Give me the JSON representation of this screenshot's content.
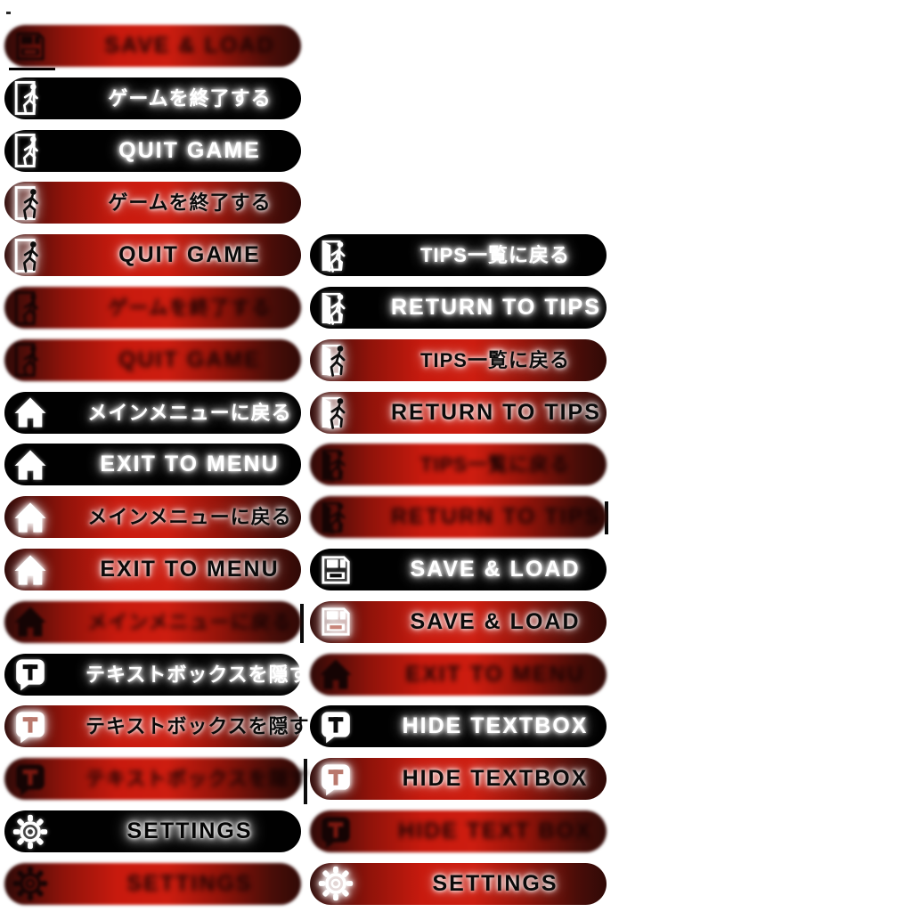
{
  "palette": {
    "red_bright": "#cc1b0f",
    "red_dark": "#2f0a08",
    "black": "#010101",
    "white": "#ffffff",
    "glow": "#ffffff"
  },
  "icon_legend": {
    "floppy-icon": "save / load (floppy disk)",
    "exit-door-icon": "quit game (person leaving through door)",
    "door-open-icon": "return to tips (open door with person)",
    "home-icon": "exit to menu (house)",
    "textbox-icon": "hide textbox (speech bubble with T)",
    "gear-icon": "settings (cog)"
  },
  "states": {
    "black": "normal",
    "red": "highlighted",
    "red_blurred": "pressed / blurred"
  },
  "buttons": [
    {
      "name": "button-save-load-pressed",
      "col": 1,
      "row": 1,
      "variant": "red_blurred",
      "icon": "floppy-icon",
      "lang": "en",
      "label": "SAVE & LOAD"
    },
    {
      "name": "button-quit-game-ja",
      "col": 1,
      "row": 2,
      "variant": "black",
      "icon": "exit-door-icon",
      "lang": "ja",
      "label": "ゲームを終了する"
    },
    {
      "name": "button-quit-game-en",
      "col": 1,
      "row": 3,
      "variant": "black",
      "icon": "exit-door-icon",
      "lang": "en",
      "label": "QUIT GAME"
    },
    {
      "name": "button-quit-game-ja-hover",
      "col": 1,
      "row": 4,
      "variant": "red",
      "icon": "exit-door-icon",
      "lang": "ja",
      "label": "ゲームを終了する"
    },
    {
      "name": "button-quit-game-en-hover",
      "col": 1,
      "row": 5,
      "variant": "red",
      "icon": "exit-door-icon",
      "lang": "en",
      "label": "QUIT GAME"
    },
    {
      "name": "button-quit-game-ja-pressed",
      "col": 1,
      "row": 6,
      "variant": "red_blurred",
      "icon": "exit-door-icon",
      "lang": "ja",
      "label": "ゲームを終了する"
    },
    {
      "name": "button-quit-game-en-pressed",
      "col": 1,
      "row": 7,
      "variant": "red_blurred",
      "icon": "exit-door-icon",
      "lang": "en",
      "label": "QUIT GAME"
    },
    {
      "name": "button-exit-menu-ja",
      "col": 1,
      "row": 8,
      "variant": "black",
      "icon": "home-icon",
      "lang": "ja",
      "label": "メインメニューに戻る"
    },
    {
      "name": "button-exit-menu-en",
      "col": 1,
      "row": 9,
      "variant": "black",
      "icon": "home-icon",
      "lang": "en",
      "label": "EXIT TO MENU"
    },
    {
      "name": "button-exit-menu-ja-hover",
      "col": 1,
      "row": 10,
      "variant": "red",
      "icon": "home-icon",
      "lang": "ja",
      "label": "メインメニューに戻る"
    },
    {
      "name": "button-exit-menu-en-hover",
      "col": 1,
      "row": 11,
      "variant": "red",
      "icon": "home-icon",
      "lang": "en",
      "label": "EXIT TO MENU"
    },
    {
      "name": "button-exit-menu-ja-pressed",
      "col": 1,
      "row": 12,
      "variant": "red_blurred",
      "icon": "home-icon",
      "lang": "ja",
      "label": "メインメニューに戻る"
    },
    {
      "name": "button-hide-textbox-ja",
      "col": 1,
      "row": 13,
      "variant": "black",
      "icon": "textbox-icon",
      "lang": "ja",
      "label": "テキストボックスを隠す"
    },
    {
      "name": "button-hide-textbox-ja-hover",
      "col": 1,
      "row": 14,
      "variant": "red",
      "icon": "textbox-icon",
      "lang": "ja",
      "label": "テキストボックスを隠す"
    },
    {
      "name": "button-hide-textbox-ja-pressed",
      "col": 1,
      "row": 15,
      "variant": "red_blurred",
      "icon": "textbox-icon",
      "lang": "ja",
      "label": "テキストボックスを隠す"
    },
    {
      "name": "button-settings",
      "col": 1,
      "row": 16,
      "variant": "black",
      "icon": "gear-icon",
      "lang": "en",
      "label": "SETTINGS",
      "text_style": "text-dark"
    },
    {
      "name": "button-settings-pressed",
      "col": 1,
      "row": 17,
      "variant": "red_blurred",
      "icon": "gear-icon",
      "lang": "en",
      "label": "SETTINGS"
    },
    {
      "name": "button-return-tips-ja",
      "col": 2,
      "row": 5,
      "variant": "black",
      "icon": "door-open-icon",
      "lang": "ja",
      "label": "TIPS一覧に戻る"
    },
    {
      "name": "button-return-tips-en",
      "col": 2,
      "row": 6,
      "variant": "black",
      "icon": "door-open-icon",
      "lang": "en",
      "label": "RETURN TO TIPS"
    },
    {
      "name": "button-return-tips-ja-hover",
      "col": 2,
      "row": 7,
      "variant": "red",
      "icon": "door-open-icon",
      "lang": "ja",
      "label": "TIPS一覧に戻る"
    },
    {
      "name": "button-return-tips-en-hover",
      "col": 2,
      "row": 8,
      "variant": "red",
      "icon": "door-open-icon",
      "lang": "en",
      "label": "RETURN TO TIPS"
    },
    {
      "name": "button-return-tips-ja-pressed",
      "col": 2,
      "row": 9,
      "variant": "red_blurred",
      "icon": "door-open-icon",
      "lang": "ja",
      "label": "TIPS一覧に戻る"
    },
    {
      "name": "button-return-tips-en-pressed",
      "col": 2,
      "row": 10,
      "variant": "red_blurred",
      "icon": "door-open-icon",
      "lang": "en",
      "label": "RETURN TO TIPS"
    },
    {
      "name": "button-save-load",
      "col": 2,
      "row": 11,
      "variant": "black",
      "icon": "floppy-icon",
      "lang": "en",
      "label": "SAVE & LOAD"
    },
    {
      "name": "button-save-load-hover",
      "col": 2,
      "row": 12,
      "variant": "red",
      "icon": "floppy-icon",
      "lang": "en",
      "label": "SAVE & LOAD"
    },
    {
      "name": "button-exit-menu-en-pressed",
      "col": 2,
      "row": 13,
      "variant": "red_blurred",
      "icon": "home-icon",
      "lang": "en",
      "label": "EXIT TO MENU"
    },
    {
      "name": "button-hide-textbox-en",
      "col": 2,
      "row": 14,
      "variant": "black",
      "icon": "textbox-icon",
      "lang": "en",
      "label": "HIDE TEXTBOX"
    },
    {
      "name": "button-hide-textbox-en-hover",
      "col": 2,
      "row": 15,
      "variant": "red",
      "icon": "textbox-icon",
      "lang": "en",
      "label": "HIDE TEXTBOX"
    },
    {
      "name": "button-hide-textbox-en-pressed",
      "col": 2,
      "row": 16,
      "variant": "red_blurred",
      "icon": "textbox-icon",
      "lang": "en",
      "label": "HIDE TEXT BOX"
    },
    {
      "name": "button-settings-hover",
      "col": 2,
      "row": 17,
      "variant": "red",
      "icon": "gear-icon",
      "lang": "en",
      "label": "SETTINGS"
    }
  ]
}
